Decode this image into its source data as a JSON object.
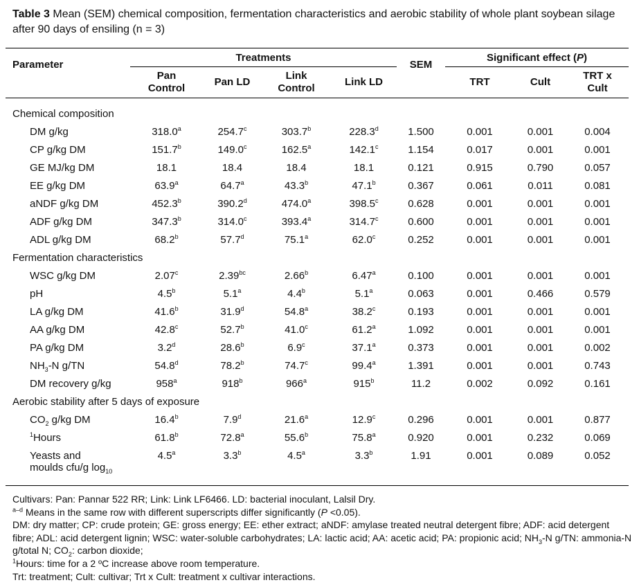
{
  "caption": {
    "label": "Table 3",
    "text": "Mean (SEM) chemical composition, fermentation characteristics and aerobic stability of whole plant soybean silage after 90 days of ensiling (n = 3)"
  },
  "headers": {
    "parameter": "Parameter",
    "treatments": "Treatments",
    "sem": "SEM",
    "significant_effect": "Significant effect (",
    "p": "P",
    "close": ")",
    "pan_control": "Pan Control",
    "pan_ld": "Pan LD",
    "link_control": "Link Control",
    "link_ld": "Link LD",
    "trt": "TRT",
    "cult": "Cult",
    "trt_x_cult": "TRT x Cult"
  },
  "sections": {
    "chemical": "Chemical composition",
    "fermentation": "Fermentation characteristics",
    "aerobic": "Aerobic stability after 5 days of exposure"
  },
  "rows": [
    {
      "param": "DM g/kg",
      "pc": "318.0",
      "pcs": "a",
      "pld": "254.7",
      "plds": "c",
      "lc": "303.7",
      "lcs": "b",
      "lld": "228.3",
      "llds": "d",
      "sem": "1.500",
      "trt": "0.001",
      "cult": "0.001",
      "txc": "0.004"
    },
    {
      "param": "CP g/kg DM",
      "pc": "151.7",
      "pcs": "b",
      "pld": "149.0",
      "plds": "c",
      "lc": "162.5",
      "lcs": "a",
      "lld": "142.1",
      "llds": "c",
      "sem": "1.154",
      "trt": "0.017",
      "cult": "0.001",
      "txc": "0.001"
    },
    {
      "param": "GE MJ/kg DM",
      "pc": "18.1",
      "pcs": "",
      "pld": "18.4",
      "plds": "",
      "lc": "18.4",
      "lcs": "",
      "lld": "18.1",
      "llds": "",
      "sem": "0.121",
      "trt": "0.915",
      "cult": "0.790",
      "txc": "0.057"
    },
    {
      "param": "EE g/kg DM",
      "pc": "63.9",
      "pcs": "a",
      "pld": "64.7",
      "plds": "a",
      "lc": "43.3",
      "lcs": "b",
      "lld": "47.1",
      "llds": "b",
      "sem": "0.367",
      "trt": "0.061",
      "cult": "0.011",
      "txc": "0.081"
    },
    {
      "param": "aNDF g/kg DM",
      "pc": "452.3",
      "pcs": "b",
      "pld": "390.2",
      "plds": "d",
      "lc": "474.0",
      "lcs": "a",
      "lld": "398.5",
      "llds": "c",
      "sem": "0.628",
      "trt": "0.001",
      "cult": "0.001",
      "txc": "0.001"
    },
    {
      "param": "ADF g/kg DM",
      "pc": "347.3",
      "pcs": "b",
      "pld": "314.0",
      "plds": "c",
      "lc": "393.4",
      "lcs": "a",
      "lld": "314.7",
      "llds": "c",
      "sem": "0.600",
      "trt": "0.001",
      "cult": "0.001",
      "txc": "0.001"
    },
    {
      "param": "ADL g/kg DM",
      "pc": "68.2",
      "pcs": "b",
      "pld": "57.7",
      "plds": "d",
      "lc": "75.1",
      "lcs": "a",
      "lld": "62.0",
      "llds": "c",
      "sem": "0.252",
      "trt": "0.001",
      "cult": "0.001",
      "txc": "0.001"
    },
    {
      "param": "WSC g/kg DM",
      "pc": "2.07",
      "pcs": "c",
      "pld": "2.39",
      "plds": "bc",
      "lc": "2.66",
      "lcs": "b",
      "lld": "6.47",
      "llds": "a",
      "sem": "0.100",
      "trt": "0.001",
      "cult": "0.001",
      "txc": "0.001"
    },
    {
      "param": "pH",
      "pc": "4.5",
      "pcs": "b",
      "pld": "5.1",
      "plds": "a",
      "lc": "4.4",
      "lcs": "b",
      "lld": "5.1",
      "llds": "a",
      "sem": "0.063",
      "trt": "0.001",
      "cult": "0.466",
      "txc": "0.579"
    },
    {
      "param": "LA g/kg DM",
      "pc": "41.6",
      "pcs": "b",
      "pld": "31.9",
      "plds": "d",
      "lc": "54.8",
      "lcs": "a",
      "lld": "38.2",
      "llds": "c",
      "sem": "0.193",
      "trt": "0.001",
      "cult": "0.001",
      "txc": "0.001"
    },
    {
      "param": "AA g/kg DM",
      "pc": "42.8",
      "pcs": "c",
      "pld": "52.7",
      "plds": "b",
      "lc": "41.0",
      "lcs": "c",
      "lld": "61.2",
      "llds": "a",
      "sem": "1.092",
      "trt": "0.001",
      "cult": "0.001",
      "txc": "0.001"
    },
    {
      "param": "PA g/kg DM",
      "pc": "3.2",
      "pcs": "d",
      "pld": "28.6",
      "plds": "b",
      "lc": "6.9",
      "lcs": "c",
      "lld": "37.1",
      "llds": "a",
      "sem": "0.373",
      "trt": "0.001",
      "cult": "0.001",
      "txc": "0.002"
    },
    {
      "param_pre": "NH",
      "param_sub": "3",
      "param_post": "-N g/TN",
      "pc": "54.8",
      "pcs": "d",
      "pld": "78.2",
      "plds": "b",
      "lc": "74.7",
      "lcs": "c",
      "lld": "99.4",
      "llds": "a",
      "sem": "1.391",
      "trt": "0.001",
      "cult": "0.001",
      "txc": "0.743"
    },
    {
      "param": "DM recovery g/kg",
      "pc": "958",
      "pcs": "a",
      "pld": "918",
      "plds": "b",
      "lc": "966",
      "lcs": "a",
      "lld": "915",
      "llds": "b",
      "sem": "11.2",
      "trt": "0.002",
      "cult": "0.092",
      "txc": "0.161"
    },
    {
      "param_pre": "CO",
      "param_sub": "2",
      "param_post": " g/kg DM",
      "pc": "16.4",
      "pcs": "b",
      "pld": "7.9",
      "plds": "d",
      "lc": "21.6",
      "lcs": "a",
      "lld": "12.9",
      "llds": "c",
      "sem": "0.296",
      "trt": "0.001",
      "cult": "0.001",
      "txc": "0.877"
    },
    {
      "param_sup": "1",
      "param": "Hours",
      "pc": "61.8",
      "pcs": "b",
      "pld": "72.8",
      "plds": "a",
      "lc": "55.6",
      "lcs": "b",
      "lld": "75.8",
      "llds": "a",
      "sem": "0.920",
      "trt": "0.001",
      "cult": "0.232",
      "txc": "0.069"
    },
    {
      "param_line1": "Yeasts and",
      "param_line2": "moulds cfu/g log",
      "param_sub": "10",
      "pc": "4.5",
      "pcs": "a",
      "pld": "3.3",
      "plds": "b",
      "lc": "4.5",
      "lcs": "a",
      "lld": "3.3",
      "llds": "b",
      "sem": "1.91",
      "trt": "0.001",
      "cult": "0.089",
      "txc": "0.052"
    }
  ],
  "footnotes": {
    "cultivars": "Cultivars: Pan: Pannar 522 RR; Link: Link LF6466.  LD: bacterial inoculant, Lalsil Dry.",
    "sup_range": "a–d",
    "means_text": " Means in the same row with different superscripts differ significantly (",
    "means_p": "P",
    "means_end": " <0.05).",
    "abbrev1": "DM: dry matter; CP: crude protein; GE: gross energy; EE: ether extract; aNDF: amylase treated neutral detergent fibre; ADF: acid detergent fibre; ADL: acid detergent lignin; WSC: water-soluble carbohydrates; LA: lactic acid; AA: acetic acid; PA: propionic acid; NH",
    "abbrev_sub3": "3",
    "abbrev2": "-N g/TN: ammonia-N g/total N; CO",
    "abbrev_sub2": "2",
    "abbrev3": ": carbon dioxide;",
    "hours_sup": "1",
    "hours_text": "Hours: time for a 2 ºC increase above room temperature.",
    "trt_text": "Trt: treatment; Cult: cultivar; Trt x Cult: treatment x cultivar interactions."
  }
}
